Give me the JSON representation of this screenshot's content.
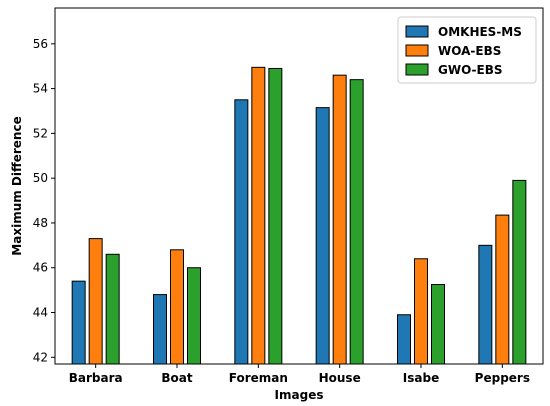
{
  "chart_data": {
    "type": "bar",
    "xlabel": "Images",
    "ylabel": "Maximum Difference",
    "categories": [
      "Barbara",
      "Boat",
      "Foreman",
      "House",
      "Isabe",
      "Peppers"
    ],
    "series": [
      {
        "name": "OMKHES-MS",
        "color": "#1f77b4",
        "values": [
          45.4,
          44.8,
          53.5,
          53.15,
          43.9,
          47.0
        ]
      },
      {
        "name": "WOA-EBS",
        "color": "#ff7f0e",
        "values": [
          47.3,
          46.8,
          54.95,
          54.6,
          46.4,
          48.35
        ]
      },
      {
        "name": "GWO-EBS",
        "color": "#2ca02c",
        "values": [
          46.6,
          46.0,
          54.9,
          54.4,
          45.25,
          49.9
        ]
      }
    ],
    "ylim": [
      41.7,
      57.6
    ],
    "yticks": [
      42,
      44,
      46,
      48,
      50,
      52,
      54,
      56
    ],
    "grid": false,
    "legend": "top-right"
  }
}
